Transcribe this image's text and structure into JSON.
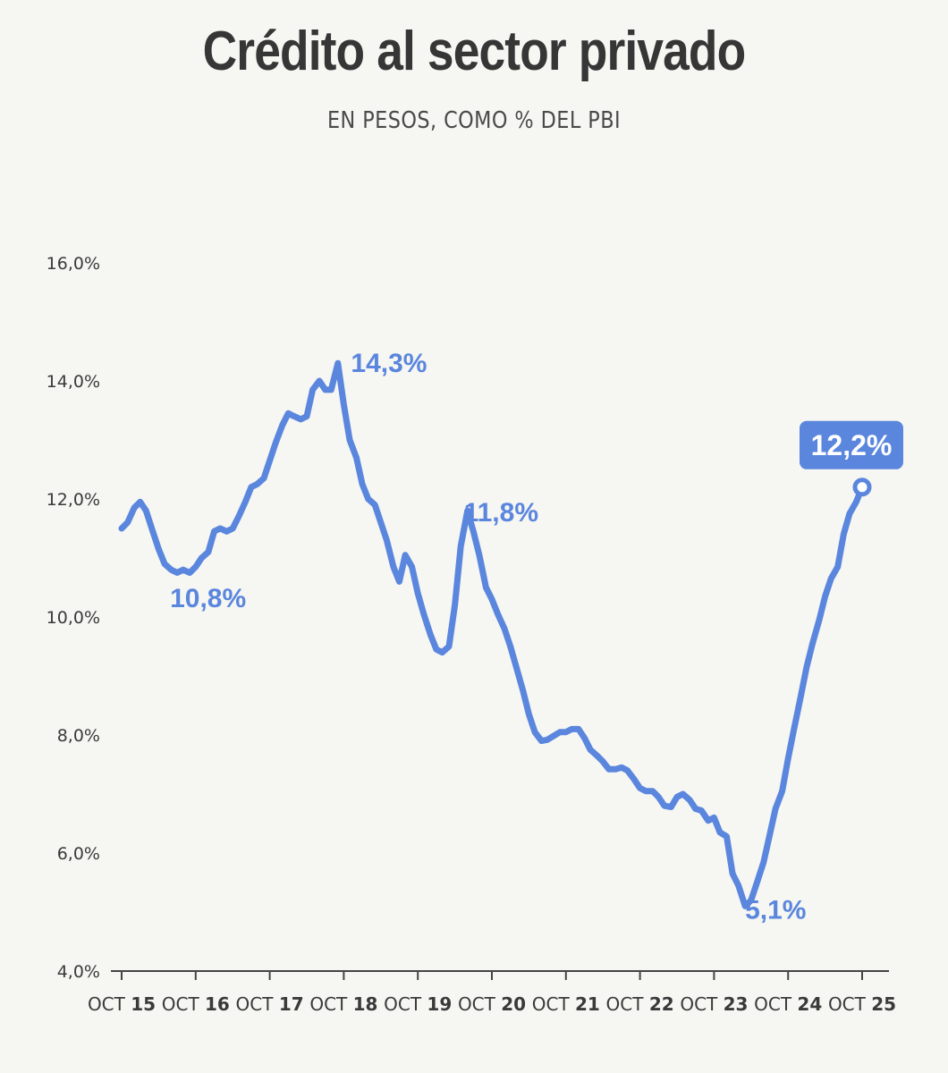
{
  "title": "Crédito al sector privado",
  "subtitle": "EN PESOS, COMO % DEL PBI",
  "colors": {
    "line": "#5a86de",
    "axis": "#444444",
    "text": "#3a3a3a",
    "background": "#f6f6f2"
  },
  "chart_data": {
    "type": "line",
    "title": "Crédito al sector privado",
    "subtitle": "EN PESOS, COMO % DEL PBI",
    "xlabel": "",
    "ylabel": "",
    "ylim": [
      4.0,
      16.0
    ],
    "yticks": [
      4.0,
      6.0,
      8.0,
      10.0,
      12.0,
      14.0,
      16.0
    ],
    "ytick_labels": [
      "4,0%",
      "6,0%",
      "8,0%",
      "10,0%",
      "12,0%",
      "14,0%",
      "16,0%"
    ],
    "xlim": [
      2015.75,
      2025.75
    ],
    "xticks": [
      {
        "x": 2015.75,
        "prefix": "OCT",
        "year": "15"
      },
      {
        "x": 2016.75,
        "prefix": "OCT",
        "year": "16"
      },
      {
        "x": 2017.75,
        "prefix": "OCT",
        "year": "17"
      },
      {
        "x": 2018.75,
        "prefix": "OCT",
        "year": "18"
      },
      {
        "x": 2019.75,
        "prefix": "OCT",
        "year": "19"
      },
      {
        "x": 2020.75,
        "prefix": "OCT",
        "year": "20"
      },
      {
        "x": 2021.75,
        "prefix": "OCT",
        "year": "21"
      },
      {
        "x": 2022.75,
        "prefix": "OCT",
        "year": "22"
      },
      {
        "x": 2023.75,
        "prefix": "OCT",
        "year": "23"
      },
      {
        "x": 2024.75,
        "prefix": "OCT",
        "year": "24"
      },
      {
        "x": 2025.75,
        "prefix": "OCT",
        "year": "25"
      }
    ],
    "grid": false,
    "series": [
      {
        "x": [
          2015.75,
          2015.83,
          2015.92,
          2016.0,
          2016.08,
          2016.17,
          2016.25,
          2016.33,
          2016.42,
          2016.5,
          2016.58,
          2016.67,
          2016.75,
          2016.83,
          2016.92,
          2017.0,
          2017.08,
          2017.17,
          2017.25,
          2017.33,
          2017.42,
          2017.5,
          2017.58,
          2017.67,
          2017.75,
          2017.83,
          2017.92,
          2018.0,
          2018.08,
          2018.17,
          2018.25,
          2018.33,
          2018.42,
          2018.5,
          2018.58,
          2018.67,
          2018.75,
          2018.83,
          2018.92,
          2019.0,
          2019.08,
          2019.17,
          2019.25,
          2019.33,
          2019.42,
          2019.5,
          2019.58,
          2019.67,
          2019.75,
          2019.83,
          2019.92,
          2020.0,
          2020.08,
          2020.17,
          2020.25,
          2020.33,
          2020.42,
          2020.5,
          2020.58,
          2020.67,
          2020.75,
          2020.83,
          2020.92,
          2021.0,
          2021.08,
          2021.17,
          2021.25,
          2021.33,
          2021.42,
          2021.5,
          2021.58,
          2021.67,
          2021.75,
          2021.83,
          2021.92,
          2022.0,
          2022.08,
          2022.17,
          2022.25,
          2022.33,
          2022.42,
          2022.5,
          2022.58,
          2022.67,
          2022.75,
          2022.83,
          2022.92,
          2023.0,
          2023.08,
          2023.17,
          2023.25,
          2023.33,
          2023.42,
          2023.5,
          2023.58,
          2023.67,
          2023.75,
          2023.83,
          2023.92,
          2024.0,
          2024.08,
          2024.17,
          2024.25,
          2024.33,
          2024.42,
          2024.5,
          2024.58,
          2024.67,
          2024.75,
          2024.83,
          2024.92,
          2025.0,
          2025.08,
          2025.17,
          2025.25,
          2025.33,
          2025.42,
          2025.5,
          2025.58,
          2025.67,
          2025.75
        ],
        "y": [
          11.5,
          11.6,
          11.85,
          11.95,
          11.8,
          11.45,
          11.15,
          10.9,
          10.8,
          10.75,
          10.8,
          10.75,
          10.85,
          11.0,
          11.1,
          11.45,
          11.5,
          11.45,
          11.5,
          11.7,
          11.95,
          12.2,
          12.25,
          12.35,
          12.65,
          12.95,
          13.25,
          13.45,
          13.4,
          13.35,
          13.4,
          13.85,
          14.0,
          13.85,
          13.85,
          14.3,
          13.6,
          13.0,
          12.7,
          12.25,
          12.0,
          11.9,
          11.6,
          11.3,
          10.85,
          10.6,
          11.05,
          10.85,
          10.4,
          10.05,
          9.7,
          9.45,
          9.4,
          9.5,
          10.2,
          11.2,
          11.8,
          11.45,
          11.05,
          10.5,
          10.3,
          10.05,
          9.8,
          9.5,
          9.15,
          8.75,
          8.35,
          8.05,
          7.9,
          7.92,
          7.98,
          8.05,
          8.05,
          8.1,
          8.1,
          7.95,
          7.75,
          7.65,
          7.55,
          7.42,
          7.42,
          7.45,
          7.4,
          7.25,
          7.1,
          7.05,
          7.05,
          6.95,
          6.8,
          6.78,
          6.95,
          7.0,
          6.9,
          6.75,
          6.72,
          6.55,
          6.6,
          6.35,
          6.28,
          5.65,
          5.45,
          5.1,
          5.2,
          5.5,
          5.85,
          6.3,
          6.75,
          7.05,
          7.6,
          8.1,
          8.65,
          9.15,
          9.55,
          9.95,
          10.35,
          10.65,
          10.85,
          11.4,
          11.75,
          11.95,
          12.2
        ],
        "end_marker": true
      }
    ],
    "annotations": [
      {
        "text": "14,3%",
        "x": 2018.75,
        "y": 14.3
      },
      {
        "text": "10,8%",
        "x": 2016.5,
        "y": 10.8
      },
      {
        "text": "11,8%",
        "x": 2020.25,
        "y": 11.8
      },
      {
        "text": "5,1%",
        "x": 2024.0,
        "y": 5.1
      },
      {
        "text": "12,2%",
        "x": 2025.75,
        "y": 12.2,
        "style": "badge"
      }
    ]
  }
}
